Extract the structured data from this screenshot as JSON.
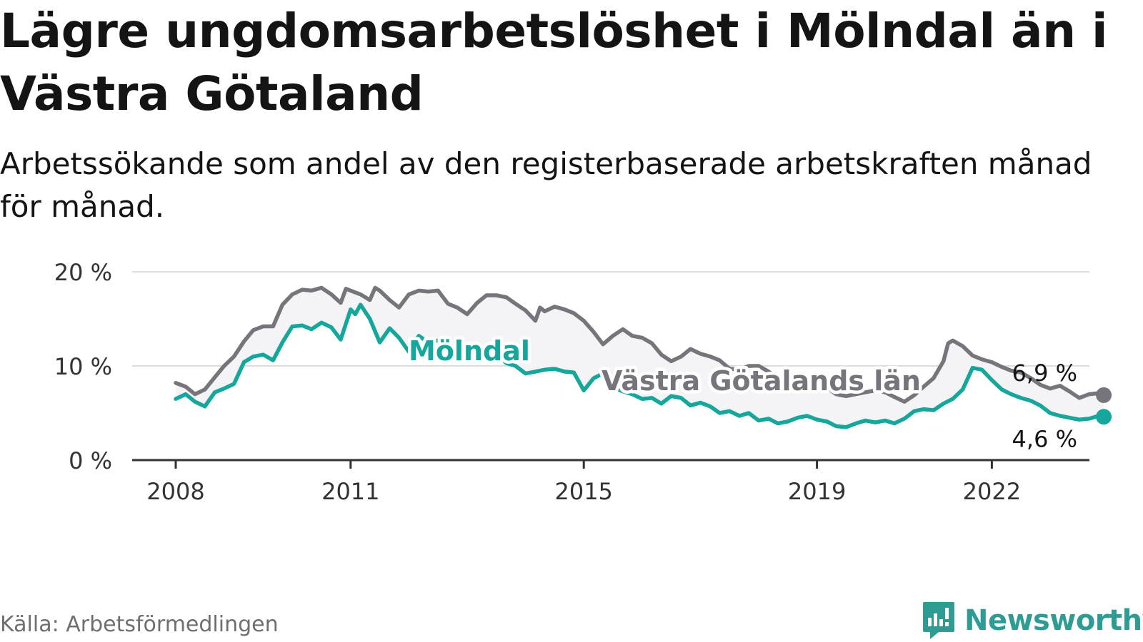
{
  "header": {
    "title": "Lägre ungdomsarbetslöshet i Mölndal än i Västra Götaland",
    "subtitle": "Arbetssökande som andel av den registerbaserade arbetskraften månad för månad."
  },
  "footer": {
    "source": "Källa: Arbetsförmedlingen",
    "brand": "Newsworthy"
  },
  "colors": {
    "molndal": "#15a69c",
    "vg": "#76757c",
    "band": "#f4f4f6",
    "grid": "#dcdcdc",
    "axis": "#333333",
    "brand": "#2f9c93"
  },
  "chart_data": {
    "type": "line",
    "title": "Lägre ungdomsarbetslöshet i Mölndal än i Västra Götaland",
    "xlabel": "",
    "ylabel": "",
    "xlim": [
      2008,
      2023.9
    ],
    "ylim": [
      0,
      20
    ],
    "y_ticks": [
      0,
      10,
      20
    ],
    "y_tick_labels": [
      "0 %",
      "10 %",
      "20 %"
    ],
    "x_ticks": [
      2008,
      2011,
      2015,
      2019,
      2022
    ],
    "x_tick_labels": [
      "2008",
      "2011",
      "2015",
      "2019",
      "2022"
    ],
    "grid": true,
    "series": [
      {
        "name": "Västra Götalands län",
        "color_key": "vg",
        "end_label": "6,9 %",
        "points": [
          [
            2008.0,
            8.2
          ],
          [
            2008.17,
            7.8
          ],
          [
            2008.33,
            7.0
          ],
          [
            2008.5,
            7.5
          ],
          [
            2008.67,
            8.8
          ],
          [
            2008.83,
            10.0
          ],
          [
            2009.0,
            11.0
          ],
          [
            2009.17,
            12.6
          ],
          [
            2009.33,
            13.8
          ],
          [
            2009.5,
            14.2
          ],
          [
            2009.67,
            14.2
          ],
          [
            2009.83,
            16.5
          ],
          [
            2010.0,
            17.6
          ],
          [
            2010.17,
            18.1
          ],
          [
            2010.33,
            18.0
          ],
          [
            2010.5,
            18.3
          ],
          [
            2010.67,
            17.6
          ],
          [
            2010.83,
            16.7
          ],
          [
            2010.92,
            18.2
          ],
          [
            2011.0,
            18.0
          ],
          [
            2011.17,
            17.6
          ],
          [
            2011.33,
            17.0
          ],
          [
            2011.42,
            18.3
          ],
          [
            2011.5,
            18.0
          ],
          [
            2011.67,
            17.0
          ],
          [
            2011.83,
            16.2
          ],
          [
            2012.0,
            17.6
          ],
          [
            2012.17,
            18.0
          ],
          [
            2012.33,
            17.9
          ],
          [
            2012.5,
            18.0
          ],
          [
            2012.67,
            16.6
          ],
          [
            2012.83,
            16.2
          ],
          [
            2013.0,
            15.5
          ],
          [
            2013.17,
            16.7
          ],
          [
            2013.33,
            17.5
          ],
          [
            2013.5,
            17.5
          ],
          [
            2013.67,
            17.3
          ],
          [
            2013.83,
            16.6
          ],
          [
            2014.0,
            15.9
          ],
          [
            2014.17,
            14.8
          ],
          [
            2014.25,
            16.2
          ],
          [
            2014.33,
            15.8
          ],
          [
            2014.5,
            16.3
          ],
          [
            2014.67,
            16.0
          ],
          [
            2014.83,
            15.6
          ],
          [
            2015.0,
            14.8
          ],
          [
            2015.17,
            13.6
          ],
          [
            2015.33,
            12.3
          ],
          [
            2015.5,
            13.2
          ],
          [
            2015.67,
            13.9
          ],
          [
            2015.83,
            13.2
          ],
          [
            2016.0,
            13.0
          ],
          [
            2016.17,
            12.4
          ],
          [
            2016.33,
            11.2
          ],
          [
            2016.5,
            10.5
          ],
          [
            2016.67,
            11.0
          ],
          [
            2016.83,
            11.8
          ],
          [
            2017.0,
            11.3
          ],
          [
            2017.17,
            11.0
          ],
          [
            2017.33,
            10.6
          ],
          [
            2017.5,
            9.7
          ],
          [
            2017.67,
            9.6
          ],
          [
            2017.83,
            10.0
          ],
          [
            2018.0,
            10.0
          ],
          [
            2018.17,
            9.4
          ],
          [
            2018.33,
            8.7
          ],
          [
            2018.5,
            8.4
          ],
          [
            2018.67,
            8.7
          ],
          [
            2018.83,
            8.2
          ],
          [
            2019.0,
            8.2
          ],
          [
            2019.17,
            7.7
          ],
          [
            2019.33,
            7.0
          ],
          [
            2019.5,
            6.8
          ],
          [
            2019.67,
            7.0
          ],
          [
            2019.83,
            7.2
          ],
          [
            2020.0,
            7.4
          ],
          [
            2020.17,
            7.2
          ],
          [
            2020.33,
            6.7
          ],
          [
            2020.5,
            6.2
          ],
          [
            2020.67,
            6.9
          ],
          [
            2020.83,
            7.8
          ],
          [
            2021.0,
            8.7
          ],
          [
            2021.17,
            10.5
          ],
          [
            2021.25,
            12.4
          ],
          [
            2021.33,
            12.7
          ],
          [
            2021.5,
            12.1
          ],
          [
            2021.67,
            11.1
          ],
          [
            2021.83,
            10.7
          ],
          [
            2022.0,
            10.4
          ],
          [
            2022.17,
            9.9
          ],
          [
            2022.33,
            9.5
          ],
          [
            2022.5,
            9.3
          ],
          [
            2022.67,
            8.7
          ],
          [
            2022.83,
            8.0
          ],
          [
            2023.0,
            7.6
          ],
          [
            2023.17,
            7.9
          ],
          [
            2023.33,
            7.3
          ],
          [
            2023.5,
            6.6
          ],
          [
            2023.67,
            7.0
          ],
          [
            2023.83,
            7.1
          ],
          [
            2023.92,
            6.9
          ]
        ]
      },
      {
        "name": "Mölndal",
        "color_key": "molndal",
        "end_label": "4,6 %",
        "points": [
          [
            2008.0,
            6.5
          ],
          [
            2008.17,
            7.0
          ],
          [
            2008.33,
            6.2
          ],
          [
            2008.5,
            5.7
          ],
          [
            2008.67,
            7.2
          ],
          [
            2008.83,
            7.6
          ],
          [
            2009.0,
            8.1
          ],
          [
            2009.17,
            10.4
          ],
          [
            2009.33,
            11.0
          ],
          [
            2009.5,
            11.2
          ],
          [
            2009.67,
            10.6
          ],
          [
            2009.83,
            12.5
          ],
          [
            2010.0,
            14.2
          ],
          [
            2010.17,
            14.3
          ],
          [
            2010.33,
            13.9
          ],
          [
            2010.5,
            14.6
          ],
          [
            2010.67,
            14.1
          ],
          [
            2010.83,
            12.8
          ],
          [
            2011.0,
            16.0
          ],
          [
            2011.08,
            15.5
          ],
          [
            2011.17,
            16.5
          ],
          [
            2011.33,
            15.0
          ],
          [
            2011.5,
            12.5
          ],
          [
            2011.67,
            14.0
          ],
          [
            2011.83,
            13.0
          ],
          [
            2012.0,
            11.5
          ],
          [
            2012.17,
            13.2
          ],
          [
            2012.33,
            12.5
          ],
          [
            2012.5,
            12.7
          ],
          [
            2012.67,
            11.7
          ],
          [
            2012.83,
            11.9
          ],
          [
            2013.0,
            11.2
          ],
          [
            2013.17,
            11.8
          ],
          [
            2013.33,
            10.9
          ],
          [
            2013.5,
            11.4
          ],
          [
            2013.67,
            10.3
          ],
          [
            2013.83,
            10.0
          ],
          [
            2014.0,
            9.2
          ],
          [
            2014.17,
            9.4
          ],
          [
            2014.33,
            9.6
          ],
          [
            2014.5,
            9.7
          ],
          [
            2014.67,
            9.4
          ],
          [
            2014.83,
            9.3
          ],
          [
            2015.0,
            7.4
          ],
          [
            2015.17,
            8.7
          ],
          [
            2015.33,
            9.2
          ],
          [
            2015.5,
            7.7
          ],
          [
            2015.67,
            7.3
          ],
          [
            2015.83,
            7.0
          ],
          [
            2016.0,
            6.5
          ],
          [
            2016.17,
            6.6
          ],
          [
            2016.33,
            6.0
          ],
          [
            2016.5,
            6.8
          ],
          [
            2016.67,
            6.6
          ],
          [
            2016.83,
            5.8
          ],
          [
            2017.0,
            6.1
          ],
          [
            2017.17,
            5.7
          ],
          [
            2017.33,
            5.0
          ],
          [
            2017.5,
            5.2
          ],
          [
            2017.67,
            4.7
          ],
          [
            2017.83,
            5.0
          ],
          [
            2018.0,
            4.2
          ],
          [
            2018.17,
            4.4
          ],
          [
            2018.33,
            3.9
          ],
          [
            2018.5,
            4.1
          ],
          [
            2018.67,
            4.5
          ],
          [
            2018.83,
            4.7
          ],
          [
            2019.0,
            4.3
          ],
          [
            2019.17,
            4.1
          ],
          [
            2019.33,
            3.6
          ],
          [
            2019.5,
            3.5
          ],
          [
            2019.67,
            3.9
          ],
          [
            2019.83,
            4.2
          ],
          [
            2020.0,
            4.0
          ],
          [
            2020.17,
            4.2
          ],
          [
            2020.33,
            3.9
          ],
          [
            2020.5,
            4.4
          ],
          [
            2020.67,
            5.2
          ],
          [
            2020.83,
            5.4
          ],
          [
            2021.0,
            5.3
          ],
          [
            2021.17,
            6.0
          ],
          [
            2021.33,
            6.5
          ],
          [
            2021.5,
            7.5
          ],
          [
            2021.67,
            9.8
          ],
          [
            2021.83,
            9.6
          ],
          [
            2022.0,
            8.5
          ],
          [
            2022.17,
            7.5
          ],
          [
            2022.33,
            7.0
          ],
          [
            2022.5,
            6.6
          ],
          [
            2022.67,
            6.3
          ],
          [
            2022.83,
            5.8
          ],
          [
            2023.0,
            5.0
          ],
          [
            2023.17,
            4.7
          ],
          [
            2023.33,
            4.5
          ],
          [
            2023.5,
            4.3
          ],
          [
            2023.67,
            4.4
          ],
          [
            2023.83,
            4.7
          ],
          [
            2023.92,
            4.6
          ]
        ]
      }
    ],
    "annotations": [
      {
        "text": "Mölndal",
        "series": "Mölndal"
      },
      {
        "text": "Västra Götalands län",
        "series": "Västra Götalands län"
      }
    ]
  }
}
